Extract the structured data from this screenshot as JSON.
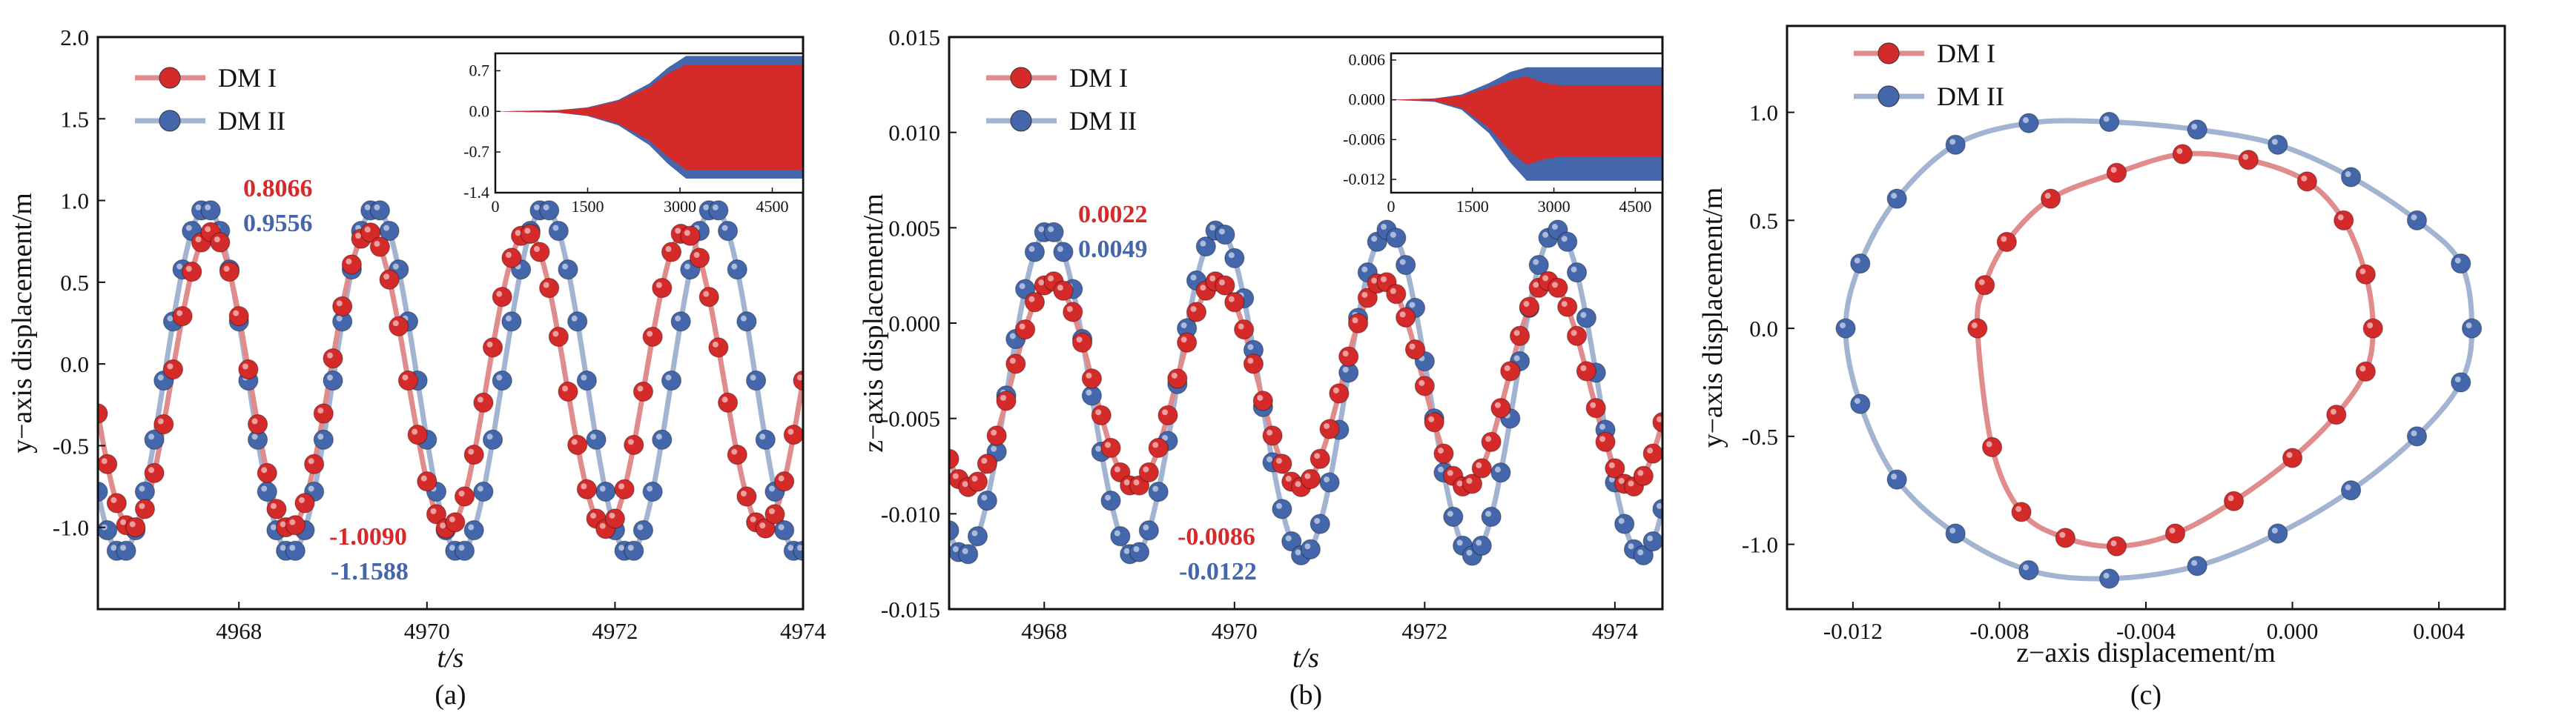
{
  "colors": {
    "series1": "#d42a2a",
    "series1_line": "#e08c8c",
    "series2": "#4466aa",
    "series2_line": "#a3b3d2"
  },
  "legend": [
    "DM I",
    "DM II"
  ],
  "chart_data": [
    {
      "type": "line",
      "panel_label": "(a)",
      "xlabel": "t/s",
      "ylabel": "y−axis displacement/m",
      "xlim": [
        4966.5,
        4974
      ],
      "ylim": [
        -1.5,
        2.0
      ],
      "xticks": [
        "4968",
        "4970",
        "4972",
        "4974"
      ],
      "yticks": [
        "-1.0",
        "-0.5",
        "0.0",
        "0.5",
        "1.0",
        "1.5",
        "2.0"
      ],
      "series": [
        {
          "name": "DM I",
          "period": 1.68,
          "peak_t": 4967.7,
          "max": 0.8066,
          "min": -1.009,
          "dt": 0.1
        },
        {
          "name": "DM II",
          "period": 1.8,
          "peak_t": 4967.65,
          "max": 0.9556,
          "min": -1.1588,
          "dt": 0.1
        }
      ],
      "annotations": {
        "max_series1": "0.8066",
        "max_series2": "0.9556",
        "min_series1": "-1.0090",
        "min_series2": "-1.1588"
      },
      "inset": {
        "xlim": [
          0,
          5000
        ],
        "ylim": [
          -1.4,
          1.0
        ],
        "xticks": [
          "0",
          "1500",
          "3000",
          "4500"
        ],
        "yticks": [
          "-1.4",
          "-0.7",
          "0.0",
          "0.7"
        ],
        "envelope_series2": {
          "t": [
            0,
            1000,
            1500,
            2000,
            2500,
            2800,
            3100,
            5000
          ],
          "upper": [
            0,
            0.02,
            0.07,
            0.2,
            0.48,
            0.75,
            0.955,
            0.955
          ],
          "lower": [
            0,
            -0.02,
            -0.08,
            -0.24,
            -0.58,
            -0.9,
            -1.158,
            -1.158
          ]
        },
        "envelope_series1": {
          "t": [
            0,
            1000,
            1500,
            2000,
            2500,
            2800,
            3100,
            5000
          ],
          "upper": [
            0,
            0.02,
            0.06,
            0.18,
            0.42,
            0.65,
            0.806,
            0.806
          ],
          "lower": [
            0,
            -0.02,
            -0.07,
            -0.21,
            -0.5,
            -0.78,
            -1.009,
            -1.009
          ]
        }
      }
    },
    {
      "type": "line",
      "panel_label": "(b)",
      "xlabel": "t/s",
      "ylabel": "z−axis displacement/m",
      "xlim": [
        4967,
        4974.5
      ],
      "ylim": [
        -0.015,
        0.015
      ],
      "xticks": [
        "4968",
        "4970",
        "4972",
        "4974"
      ],
      "yticks": [
        "-0.015",
        "-0.010",
        "-0.005",
        "0.000",
        "0.005",
        "0.010",
        "0.015"
      ],
      "series": [
        {
          "name": "DM I",
          "period": 1.74,
          "peak_t": 4968.08,
          "max": 0.0022,
          "min": -0.0086,
          "dt": 0.1
        },
        {
          "name": "DM II",
          "period": 1.78,
          "peak_t": 4968.05,
          "max": 0.0049,
          "min": -0.0122,
          "dt": 0.1
        }
      ],
      "annotations": {
        "max_series1": "0.0022",
        "max_series2": "0.0049",
        "min_series1": "-0.0086",
        "min_series2": "-0.0122"
      },
      "inset": {
        "xlim": [
          0,
          5000
        ],
        "ylim": [
          -0.014,
          0.007
        ],
        "xticks": [
          "0",
          "1500",
          "3000",
          "4500"
        ],
        "yticks": [
          "-0.012",
          "-0.006",
          "0.000",
          "0.006"
        ],
        "envelope_series2": {
          "t": [
            0,
            800,
            1300,
            1800,
            2200,
            2500,
            5000
          ],
          "upper": [
            0,
            0.0002,
            0.0008,
            0.0025,
            0.0042,
            0.0049,
            0.0049
          ],
          "lower": [
            0,
            -0.0003,
            -0.0015,
            -0.005,
            -0.0095,
            -0.0122,
            -0.0122
          ]
        },
        "envelope_series1": {
          "t": [
            0,
            800,
            1300,
            1800,
            2200,
            2500,
            2800,
            3100,
            5000
          ],
          "upper": [
            0,
            0.0002,
            0.0006,
            0.0018,
            0.003,
            0.0035,
            0.0026,
            0.0022,
            0.0022
          ],
          "lower": [
            0,
            -0.0002,
            -0.0012,
            -0.0042,
            -0.0078,
            -0.0098,
            -0.009,
            -0.0086,
            -0.0086
          ]
        }
      }
    },
    {
      "type": "scatter",
      "panel_label": "(c)",
      "xlabel": "z−axis displacement/m",
      "ylabel": "y−axis displacement/m",
      "xlim": [
        -0.0138,
        0.0058
      ],
      "ylim": [
        -1.3,
        1.4
      ],
      "xticks": [
        "-0.012",
        "-0.008",
        "-0.004",
        "0.000",
        "0.004"
      ],
      "yticks": [
        "-1.0",
        "-0.5",
        "0.0",
        "0.5",
        "1.0"
      ],
      "series": [
        {
          "name": "DM I",
          "z_points": [
            -0.0086,
            -0.0084,
            -0.0078,
            -0.0066,
            -0.0048,
            -0.003,
            -0.0012,
            0.0004,
            0.0014,
            0.002,
            0.0022,
            0.002,
            0.0012,
            0.0,
            -0.0016,
            -0.0032,
            -0.0048,
            -0.0062,
            -0.0074,
            -0.0082
          ],
          "y_points": [
            0.0,
            0.2,
            0.4,
            0.6,
            0.72,
            0.8066,
            0.78,
            0.68,
            0.5,
            0.25,
            0.0,
            -0.2,
            -0.4,
            -0.6,
            -0.8,
            -0.95,
            -1.009,
            -0.97,
            -0.85,
            -0.55
          ]
        },
        {
          "name": "DM II",
          "z_points": [
            -0.0122,
            -0.0118,
            -0.0108,
            -0.0092,
            -0.0072,
            -0.005,
            -0.0026,
            -0.0004,
            0.0016,
            0.0034,
            0.0046,
            0.0049,
            0.0046,
            0.0034,
            0.0016,
            -0.0004,
            -0.0026,
            -0.005,
            -0.0072,
            -0.0092,
            -0.0108,
            -0.0118
          ],
          "y_points": [
            0.0,
            0.3,
            0.6,
            0.85,
            0.95,
            0.9556,
            0.92,
            0.85,
            0.7,
            0.5,
            0.3,
            0.0,
            -0.25,
            -0.5,
            -0.75,
            -0.95,
            -1.1,
            -1.1588,
            -1.12,
            -0.95,
            -0.7,
            -0.35
          ]
        }
      ]
    }
  ]
}
